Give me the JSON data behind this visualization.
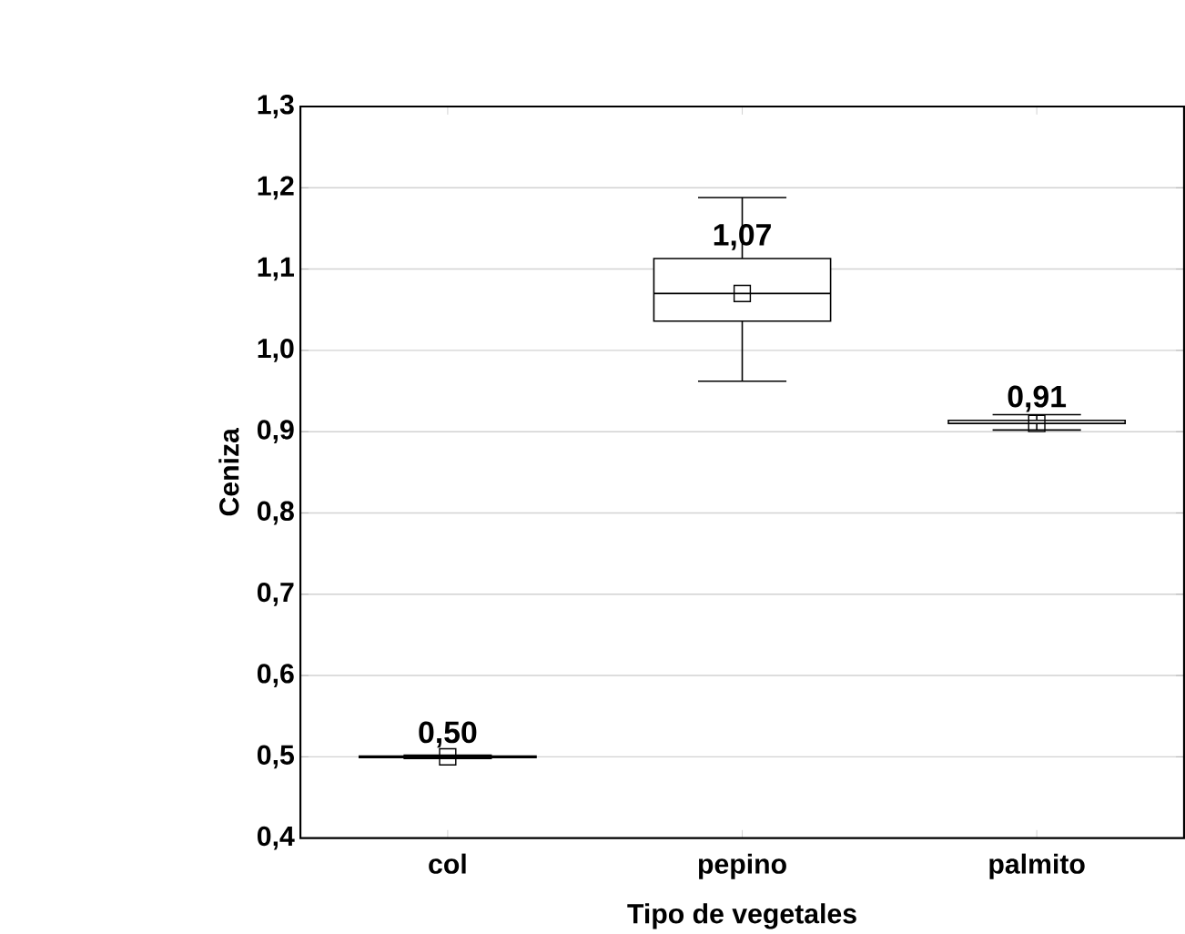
{
  "chart_data": {
    "type": "box",
    "xlabel": "Tipo de vegetales",
    "ylabel": "Ceniza",
    "categories": [
      "col",
      "pepino",
      "palmito"
    ],
    "boxes": [
      {
        "low": 0.498,
        "q1": 0.499,
        "median": 0.5,
        "q3": 0.501,
        "high": 0.502,
        "mean": 0.5
      },
      {
        "low": 0.962,
        "q1": 1.036,
        "median": 1.07,
        "q3": 1.113,
        "high": 1.188,
        "mean": 1.07
      },
      {
        "low": 0.902,
        "q1": 0.91,
        "median": 0.91,
        "q3": 0.914,
        "high": 0.921,
        "mean": 0.91
      }
    ],
    "ylim": [
      0.4,
      1.3
    ],
    "yticks": [
      {
        "value": 0.4,
        "label": "0,4"
      },
      {
        "value": 0.5,
        "label": "0,5"
      },
      {
        "value": 0.6,
        "label": "0,6"
      },
      {
        "value": 0.7,
        "label": "0,7"
      },
      {
        "value": 0.8,
        "label": "0,8"
      },
      {
        "value": 0.9,
        "label": "0,9"
      },
      {
        "value": 1.0,
        "label": "1,0"
      },
      {
        "value": 1.1,
        "label": "1,1"
      },
      {
        "value": 1.2,
        "label": "1,2"
      },
      {
        "value": 1.3,
        "label": "1,3"
      }
    ],
    "annotations": [
      {
        "text": "0,50",
        "x": "col",
        "y": 0.5
      },
      {
        "text": "1,07",
        "x": "pepino",
        "y": 1.07
      },
      {
        "text": "0,91",
        "x": "palmito",
        "y": 0.91
      }
    ],
    "grid": "y",
    "marker": "square"
  }
}
